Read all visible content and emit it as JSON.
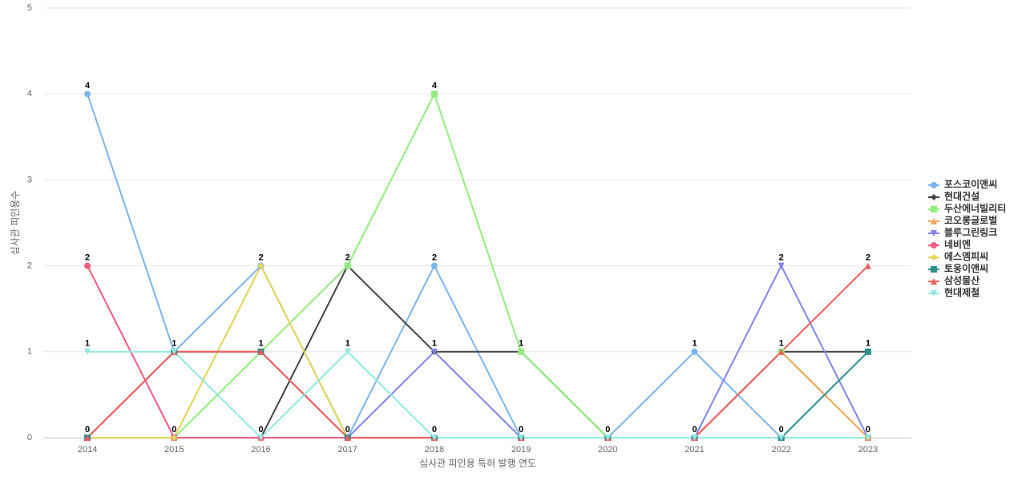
{
  "chart_data": {
    "type": "line",
    "x_label": "심사관 피인용 특허 발행 연도",
    "y_label": "심사관 피인용수",
    "categories": [
      "2014",
      "2015",
      "2016",
      "2017",
      "2018",
      "2019",
      "2020",
      "2021",
      "2022",
      "2023"
    ],
    "ylim": [
      0,
      5
    ],
    "yticks": [
      0,
      1,
      2,
      3,
      4,
      5
    ],
    "grid": true,
    "legend": "right",
    "series": [
      {
        "name": "포스코이앤씨",
        "color": "#7cb5ec",
        "marker": "circle",
        "values": [
          4,
          1,
          2,
          0,
          2,
          0,
          0,
          1,
          0,
          0
        ]
      },
      {
        "name": "현대건설",
        "color": "#434348",
        "marker": "diamond",
        "values": [
          0,
          0,
          0,
          2,
          1,
          1,
          0,
          0,
          1,
          1
        ]
      },
      {
        "name": "두산에너빌리티",
        "color": "#90ed7d",
        "marker": "square",
        "values": [
          0,
          0,
          1,
          2,
          4,
          1,
          0,
          0,
          1,
          0
        ]
      },
      {
        "name": "코오롱글로벌",
        "color": "#f7a35c",
        "marker": "triangle",
        "values": [
          0,
          0,
          0,
          0,
          0,
          0,
          0,
          0,
          1,
          0
        ]
      },
      {
        "name": "블루그린링크",
        "color": "#8085e9",
        "marker": "triangle-down",
        "values": [
          0,
          0,
          0,
          0,
          1,
          0,
          0,
          0,
          2,
          0
        ]
      },
      {
        "name": "네비엔",
        "color": "#f15c80",
        "marker": "circle",
        "values": [
          2,
          0,
          0,
          0,
          0,
          0,
          0,
          0,
          0,
          0
        ]
      },
      {
        "name": "에스엠피씨",
        "color": "#e4d354",
        "marker": "diamond",
        "values": [
          0,
          0,
          2,
          0,
          0,
          0,
          0,
          0,
          0,
          0
        ]
      },
      {
        "name": "토웅이앤씨",
        "color": "#2b908f",
        "marker": "square",
        "values": [
          0,
          1,
          1,
          0,
          0,
          0,
          0,
          0,
          0,
          1
        ]
      },
      {
        "name": "삼성물산",
        "color": "#f45b5b",
        "marker": "triangle",
        "values": [
          0,
          1,
          1,
          0,
          0,
          0,
          0,
          0,
          1,
          2
        ]
      },
      {
        "name": "현대제철",
        "color": "#91e8e1",
        "marker": "triangle-down",
        "values": [
          1,
          1,
          0,
          1,
          0,
          0,
          0,
          0,
          0,
          0
        ]
      }
    ]
  }
}
